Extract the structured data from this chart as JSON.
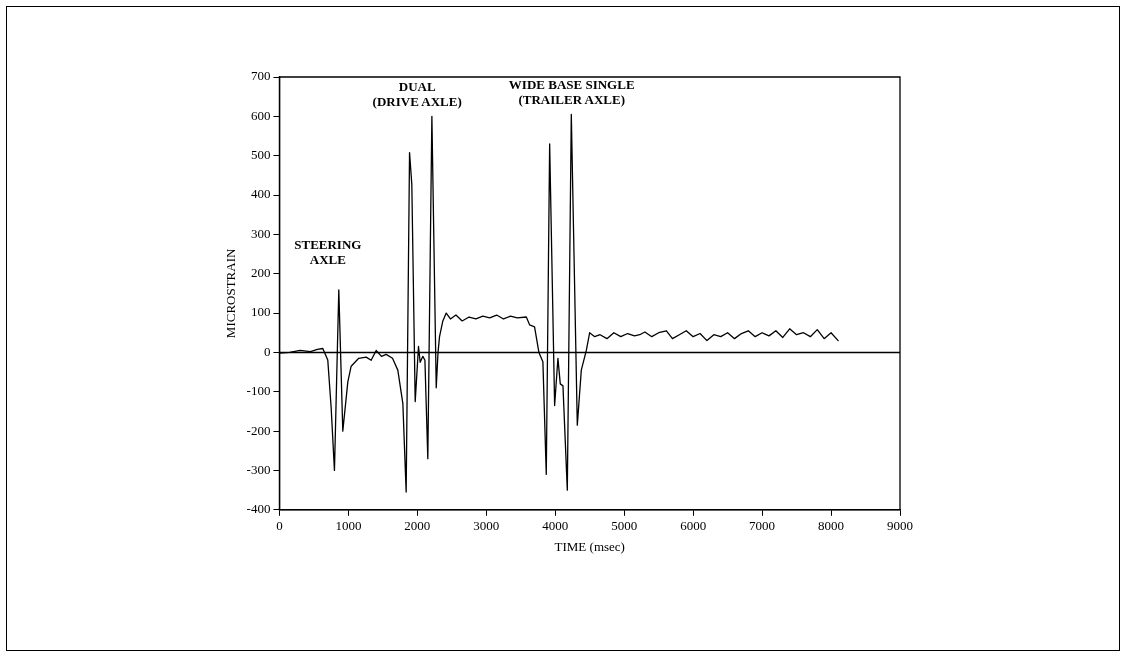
{
  "chart_data": {
    "type": "line",
    "xlabel": "TIME (msec)",
    "ylabel": "MICROSTRAIN",
    "x": [
      0,
      150,
      300,
      450,
      550,
      629,
      701,
      750,
      798,
      861,
      919,
      992,
      1040,
      1150,
      1258,
      1330,
      1403,
      1480,
      1548,
      1640,
      1717,
      1790,
      1838,
      1887,
      1920,
      1969,
      2017,
      2041,
      2080,
      2110,
      2152,
      2211,
      2274,
      2300,
      2322,
      2370,
      2419,
      2480,
      2560,
      2650,
      2750,
      2850,
      2950,
      3050,
      3150,
      3250,
      3350,
      3450,
      3581,
      3628,
      3700,
      3763,
      3821,
      3870,
      3919,
      3991,
      4039,
      4073,
      4112,
      4175,
      4233,
      4320,
      4378,
      4451,
      4499,
      4572,
      4650,
      4750,
      4850,
      4950,
      5050,
      5150,
      5225,
      5300,
      5400,
      5500,
      5612,
      5700,
      5800,
      5900,
      6000,
      6100,
      6200,
      6300,
      6400,
      6500,
      6600,
      6700,
      6800,
      6900,
      7000,
      7100,
      7200,
      7300,
      7400,
      7500,
      7600,
      7700,
      7800,
      7900,
      8000,
      8103
    ],
    "values": [
      -2,
      0,
      5,
      2,
      8,
      10,
      -19,
      -140,
      -300,
      159,
      -200,
      -75,
      -35,
      -15,
      -12,
      -20,
      5,
      -10,
      -5,
      -15,
      -45,
      -130,
      -355,
      508,
      427,
      -125,
      15,
      -25,
      -10,
      -20,
      -270,
      600,
      -90,
      0,
      40,
      80,
      100,
      85,
      95,
      80,
      90,
      85,
      92,
      88,
      95,
      85,
      92,
      88,
      90,
      70,
      65,
      0,
      -24,
      -310,
      530,
      -135,
      -15,
      -80,
      -85,
      -350,
      605,
      -185,
      -45,
      5,
      50,
      40,
      45,
      35,
      50,
      40,
      48,
      42,
      45,
      52,
      40,
      50,
      55,
      35,
      45,
      55,
      40,
      48,
      30,
      45,
      40,
      50,
      35,
      48,
      55,
      40,
      50,
      42,
      55,
      38,
      60,
      45,
      50,
      40,
      58,
      35,
      50,
      30
    ],
    "color": "#000000",
    "xlim": [
      0,
      9000
    ],
    "xticks": [
      0,
      1000,
      2000,
      3000,
      4000,
      5000,
      6000,
      7000,
      8000,
      9000
    ],
    "ylim": [
      -400,
      700
    ],
    "yticks": [
      -400,
      -300,
      -200,
      -100,
      0,
      100,
      200,
      300,
      400,
      500,
      600,
      700
    ],
    "ref_lines": [
      {
        "axis": "y",
        "value": 0,
        "color": "#000000"
      }
    ],
    "annotations": [
      "STEERING\nAXLE",
      "DUAL\n(DRIVE AXLE)",
      "WIDE BASE SINGLE\n(TRAILER AXLE)"
    ],
    "grid": false,
    "legend": false,
    "marker": "none",
    "line_style": "solid"
  }
}
